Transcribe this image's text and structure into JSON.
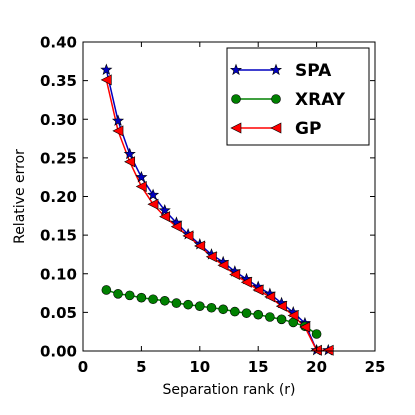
{
  "chart_data": {
    "type": "line",
    "xlabel": "Separation rank (r)",
    "ylabel": "Relative error",
    "xlim": [
      0,
      25
    ],
    "ylim": [
      0,
      0.4
    ],
    "xticks": [
      0,
      5,
      10,
      15,
      20,
      25
    ],
    "yticks": [
      0.0,
      0.05,
      0.1,
      0.15,
      0.2,
      0.25,
      0.3,
      0.35,
      0.4
    ],
    "xtick_labels": [
      "0",
      "5",
      "10",
      "15",
      "20",
      "25"
    ],
    "ytick_labels": [
      "0.00",
      "0.05",
      "0.10",
      "0.15",
      "0.20",
      "0.25",
      "0.30",
      "0.35",
      "0.40"
    ],
    "grid": false,
    "legend_position": "top-right",
    "series": [
      {
        "name": "SPA",
        "color": "#0000bf",
        "marker": "star",
        "x": [
          2,
          3,
          4,
          5,
          6,
          7,
          8,
          9,
          10,
          11,
          12,
          13,
          14,
          15,
          16,
          17,
          18,
          19,
          20,
          21
        ],
        "y": [
          0.364,
          0.298,
          0.255,
          0.225,
          0.202,
          0.182,
          0.166,
          0.151,
          0.138,
          0.125,
          0.115,
          0.103,
          0.093,
          0.083,
          0.074,
          0.062,
          0.05,
          0.036,
          0.001,
          0.001
        ]
      },
      {
        "name": "XRAY",
        "color": "#008000",
        "marker": "circle",
        "x": [
          2,
          3,
          4,
          5,
          6,
          7,
          8,
          9,
          10,
          11,
          12,
          13,
          14,
          15,
          16,
          17,
          18,
          19,
          20
        ],
        "y": [
          0.079,
          0.074,
          0.072,
          0.069,
          0.067,
          0.065,
          0.062,
          0.06,
          0.058,
          0.056,
          0.054,
          0.051,
          0.049,
          0.047,
          0.044,
          0.041,
          0.037,
          0.032,
          0.022
        ]
      },
      {
        "name": "GP",
        "color": "#ff0000",
        "marker": "triangle-left",
        "x": [
          2,
          3,
          4,
          5,
          6,
          7,
          8,
          9,
          10,
          11,
          12,
          13,
          14,
          15,
          16,
          17,
          18,
          19,
          20,
          21
        ],
        "y": [
          0.351,
          0.285,
          0.245,
          0.213,
          0.19,
          0.174,
          0.161,
          0.149,
          0.136,
          0.122,
          0.111,
          0.099,
          0.089,
          0.079,
          0.07,
          0.058,
          0.046,
          0.031,
          0.001,
          0.001
        ]
      }
    ]
  }
}
